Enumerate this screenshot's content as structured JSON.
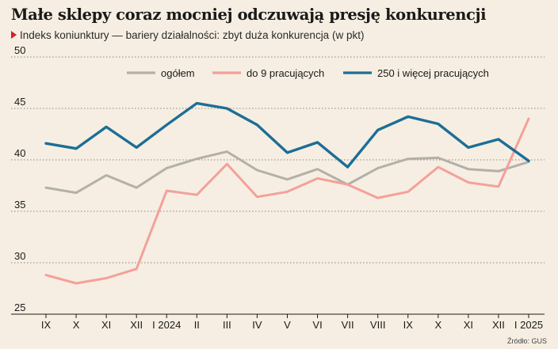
{
  "header": {
    "title": "Małe sklepy coraz mocniej odczuwają presję konkurencji",
    "subtitle": "Indeks koniunktury — bariery działalności: zbyt duża konkurencja (w pkt)"
  },
  "footer": {
    "source": "Źródło: GUS"
  },
  "chart_data": {
    "type": "line",
    "title": "Małe sklepy coraz mocniej odczuwają presję konkurencji",
    "subtitle": "Indeks koniunktury — bariery działalności: zbyt duża konkurencja (w pkt)",
    "xlabel": "",
    "ylabel": "",
    "categories": [
      "IX",
      "X",
      "XI",
      "XII",
      "I 2024",
      "II",
      "III",
      "IV",
      "V",
      "VI",
      "VII",
      "VIII",
      "IX",
      "X",
      "XI",
      "XII",
      "I 2025"
    ],
    "ylim": [
      25,
      50
    ],
    "yticks": [
      25,
      30,
      35,
      40,
      45,
      50
    ],
    "grid": "horizontal dotted",
    "legend_position": "top-center",
    "series": [
      {
        "name": "ogółem",
        "color": "#b3b0a8",
        "values": [
          37.3,
          36.8,
          38.5,
          37.3,
          39.2,
          40.1,
          40.8,
          39.0,
          38.1,
          39.1,
          37.6,
          39.2,
          40.1,
          40.2,
          39.1,
          38.9,
          39.8
        ]
      },
      {
        "name": "do 9 pracujących",
        "color": "#f4a09a",
        "values": [
          28.8,
          28.0,
          28.5,
          29.4,
          37.0,
          36.6,
          39.6,
          36.4,
          36.9,
          38.2,
          37.6,
          36.3,
          36.9,
          39.3,
          37.8,
          37.4,
          44.0
        ]
      },
      {
        "name": "250 i więcej pracujących",
        "color": "#1c6e96",
        "values": [
          41.6,
          41.1,
          43.2,
          41.2,
          43.4,
          45.5,
          45.0,
          43.4,
          40.7,
          41.7,
          39.3,
          42.9,
          44.2,
          43.5,
          41.2,
          42.0,
          39.9
        ]
      }
    ]
  }
}
